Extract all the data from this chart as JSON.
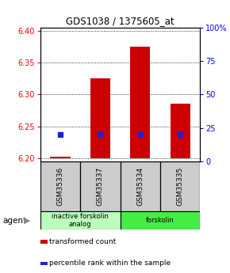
{
  "title": "GDS1038 / 1375605_at",
  "samples": [
    "GSM35336",
    "GSM35337",
    "GSM35334",
    "GSM35335"
  ],
  "bar_values": [
    6.202,
    6.325,
    6.375,
    6.285
  ],
  "bar_bottom": 6.2,
  "bar_color": "#cc0000",
  "percentile_color": "#2222cc",
  "percentile_pcts": [
    20,
    20,
    20,
    20
  ],
  "ylim_left": [
    6.195,
    6.405
  ],
  "ylim_right": [
    0,
    100
  ],
  "yticks_left": [
    6.2,
    6.25,
    6.3,
    6.35,
    6.4
  ],
  "yticks_right": [
    0,
    25,
    50,
    75,
    100
  ],
  "ytick_labels_right": [
    "0",
    "25",
    "50",
    "75",
    "100%"
  ],
  "groups": [
    {
      "label": "inactive forskolin\nanalog",
      "color": "#bbffbb",
      "span": [
        0,
        2
      ]
    },
    {
      "label": "forskolin",
      "color": "#44ee44",
      "span": [
        2,
        4
      ]
    }
  ],
  "agent_label": "agent",
  "legend_items": [
    {
      "color": "#cc0000",
      "label": "transformed count"
    },
    {
      "color": "#2222cc",
      "label": "percentile rank within the sample"
    }
  ],
  "bar_width": 0.5
}
